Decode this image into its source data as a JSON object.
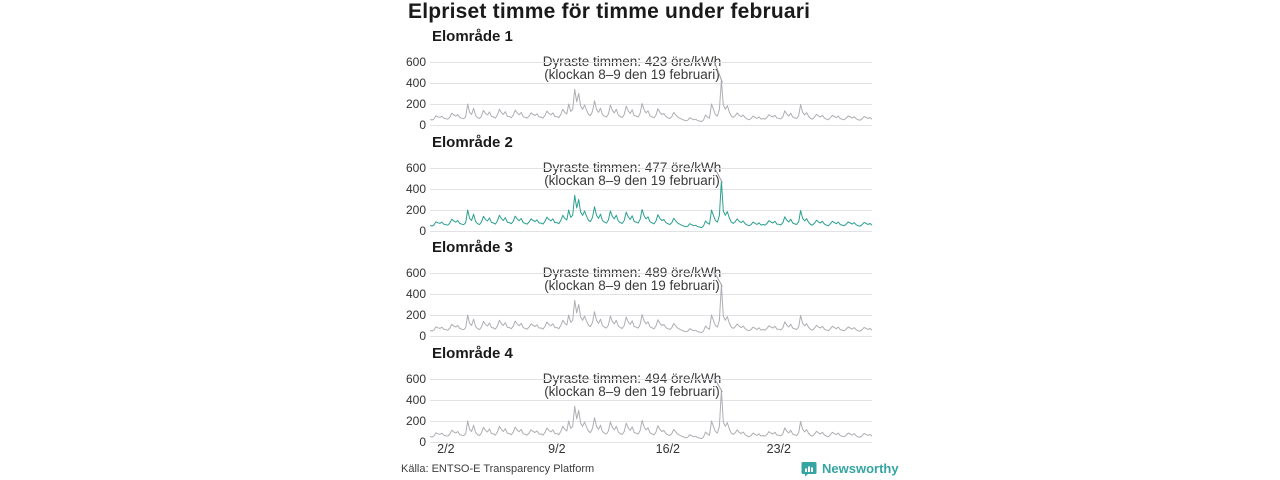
{
  "title": "Elpriset timme för timme under februari",
  "footer": {
    "source": "Källa: ENTSO-E Transparency Platform",
    "brand": "Newsworthy",
    "brand_icon": "bar-chart-badge-icon"
  },
  "colors": {
    "line_default": "#aeaeb4",
    "line_highlight": "#2aa08f",
    "grid": "#e2e2e6",
    "annotation_pointer": "#9aa0a6",
    "text": "#1a1a1a",
    "brand_teal": "#35a5a2"
  },
  "axes": {
    "ylim": [
      0,
      600
    ],
    "y_ticks": [
      600,
      400,
      200,
      0
    ],
    "x_tick_labels": [
      "2/2",
      "9/2",
      "16/2",
      "23/2"
    ],
    "x_tick_days": [
      2,
      9,
      16,
      23
    ],
    "x_unit": "dag i februari",
    "grid": true,
    "days": 28
  },
  "series_sampling": {
    "start_day": 1,
    "days": 28,
    "hours_per_point": 3,
    "unit": "öre/kWh"
  },
  "base_values": [
    52,
    48,
    58,
    88,
    78,
    72,
    84,
    64,
    60,
    55,
    75,
    112,
    95,
    85,
    100,
    72,
    65,
    60,
    80,
    200,
    120,
    100,
    160,
    90,
    70,
    62,
    88,
    140,
    110,
    95,
    125,
    82,
    76,
    66,
    96,
    150,
    118,
    100,
    128,
    84,
    80,
    70,
    92,
    142,
    114,
    98,
    120,
    80,
    72,
    66,
    86,
    116,
    100,
    90,
    106,
    76,
    76,
    66,
    92,
    132,
    110,
    96,
    116,
    80,
    80,
    70,
    100,
    150,
    120,
    105,
    200,
    130,
    150,
    340,
    220,
    300,
    180,
    150,
    190,
    140,
    100,
    90,
    130,
    230,
    150,
    120,
    160,
    100,
    85,
    75,
    105,
    190,
    140,
    115,
    150,
    95,
    80,
    72,
    100,
    180,
    135,
    110,
    145,
    90,
    85,
    75,
    110,
    205,
    145,
    115,
    135,
    88,
    78,
    68,
    95,
    155,
    120,
    100,
    110,
    80,
    70,
    62,
    80,
    120,
    95,
    75,
    65,
    55,
    48,
    40,
    45,
    70,
    60,
    50,
    55,
    42,
    38,
    32,
    48,
    95,
    75,
    65,
    200,
    150,
    100,
    85,
    150,
    423,
    190,
    150,
    185,
    125,
    85,
    72,
    88,
    115,
    92,
    80,
    95,
    70,
    58,
    50,
    62,
    85,
    72,
    62,
    78,
    56,
    62,
    56,
    72,
    98,
    86,
    76,
    92,
    66,
    64,
    58,
    78,
    135,
    102,
    86,
    112,
    76,
    68,
    62,
    88,
    195,
    122,
    96,
    118,
    82,
    62,
    56,
    76,
    102,
    86,
    76,
    92,
    66,
    56,
    50,
    70,
    92,
    80,
    70,
    86,
    60,
    56,
    50,
    66,
    86,
    76,
    66,
    80,
    60,
    50,
    46,
    60,
    82,
    72,
    62,
    72,
    55
  ],
  "peak_point": {
    "day": 19,
    "hour_slot": 3,
    "hours": "8–9"
  },
  "chart_data": [
    {
      "type": "line",
      "region": "Elområde 1",
      "color": "#aeaeb4",
      "peak_value": 423,
      "annotation": [
        "Dyraste timmen: 423 öre/kWh",
        "(klockan 8–9 den 19 februari)"
      ]
    },
    {
      "type": "line",
      "region": "Elområde 2",
      "color": "#2aa08f",
      "peak_value": 477,
      "annotation": [
        "Dyraste timmen: 477 öre/kWh",
        "(klockan 8–9 den 19 februari)"
      ]
    },
    {
      "type": "line",
      "region": "Elområde 3",
      "color": "#aeaeb4",
      "peak_value": 489,
      "annotation": [
        "Dyraste timmen: 489 öre/kWh",
        "(klockan 8–9 den 19 februari)"
      ]
    },
    {
      "type": "line",
      "region": "Elområde 4",
      "color": "#aeaeb4",
      "peak_value": 494,
      "annotation": [
        "Dyraste timmen: 494 öre/kWh",
        "(klockan 8–9 den 19 februari)"
      ]
    }
  ]
}
